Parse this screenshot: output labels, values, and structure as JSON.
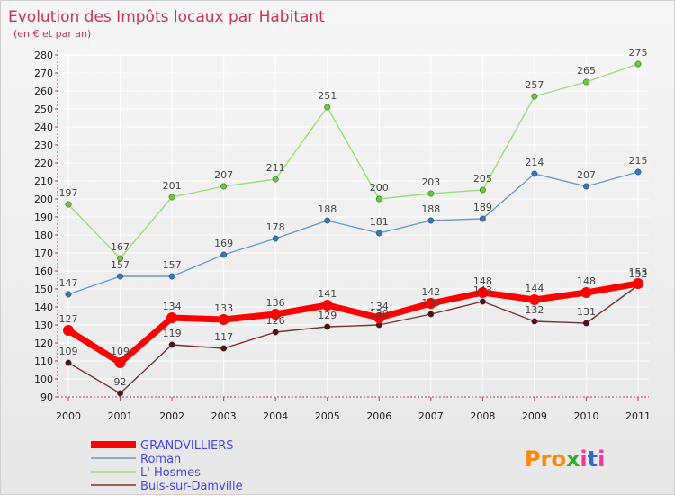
{
  "chart_data": {
    "type": "line",
    "title": "Evolution des Impôts locaux par Habitant",
    "subtitle": "(en € et par an)",
    "x": [
      "2000",
      "2001",
      "2002",
      "2003",
      "2004",
      "2005",
      "2006",
      "2007",
      "2008",
      "2009",
      "2010",
      "2011"
    ],
    "ylim": [
      90,
      280
    ],
    "yticks": [
      90,
      100,
      110,
      120,
      130,
      140,
      150,
      160,
      170,
      180,
      190,
      200,
      210,
      220,
      230,
      240,
      250,
      260,
      270,
      280
    ],
    "grid": true,
    "legend_position": "bottom-left",
    "series": [
      {
        "name": "GRANDVILLIERS",
        "color": "#ff0000",
        "marker_color": "#ff0000",
        "emphasis": true,
        "values": [
          127,
          109,
          134,
          133,
          136,
          141,
          134,
          142,
          148,
          144,
          148,
          153
        ]
      },
      {
        "name": "Roman",
        "color": "#6699cc",
        "marker_color": "#3377cc",
        "emphasis": false,
        "values": [
          147,
          157,
          157,
          169,
          178,
          188,
          181,
          188,
          189,
          214,
          207,
          215
        ]
      },
      {
        "name": "L' Hosmes",
        "color": "#99dd77",
        "marker_color": "#66cc33",
        "emphasis": false,
        "values": [
          197,
          167,
          201,
          207,
          211,
          251,
          200,
          203,
          205,
          257,
          265,
          275
        ]
      },
      {
        "name": "Buis-sur-Damville",
        "color": "#773333",
        "marker_color": "#551111",
        "emphasis": false,
        "values": [
          109,
          92,
          119,
          117,
          126,
          129,
          130,
          136,
          143,
          132,
          131,
          152
        ]
      }
    ],
    "legend_text_color": "#4444ff"
  },
  "logo": {
    "text": "Proxiti",
    "colors": [
      "#ff8800",
      "#33aa33",
      "#3366cc",
      "#ff3399"
    ]
  }
}
